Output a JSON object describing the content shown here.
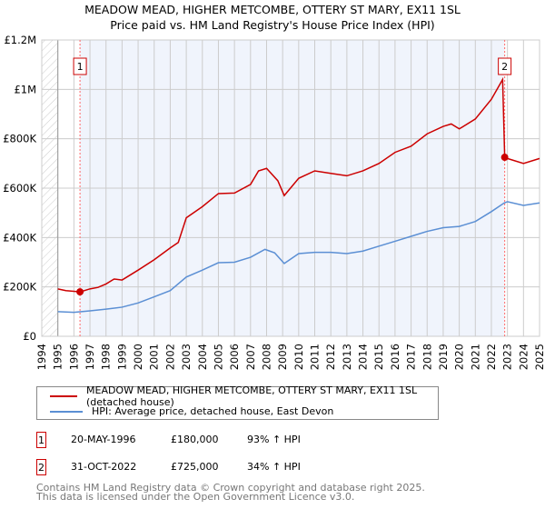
{
  "chart_data": {
    "type": "line",
    "title": "MEADOW MEAD, HIGHER METCOMBE, OTTERY ST MARY, EX11 1SL",
    "subtitle": "Price paid vs. HM Land Registry's House Price Index (HPI)",
    "xlim": [
      1994,
      2025
    ],
    "ylim": [
      0,
      1200000
    ],
    "x_ticks": [
      "1994",
      "1995",
      "1996",
      "1997",
      "1998",
      "1999",
      "2000",
      "2001",
      "2002",
      "2003",
      "2004",
      "2005",
      "2006",
      "2007",
      "2008",
      "2009",
      "2010",
      "2011",
      "2012",
      "2013",
      "2014",
      "2015",
      "2016",
      "2017",
      "2018",
      "2019",
      "2020",
      "2021",
      "2022",
      "2023",
      "2024",
      "2025"
    ],
    "y_ticks": [
      {
        "v": 0,
        "label": "£0"
      },
      {
        "v": 200000,
        "label": "£200K"
      },
      {
        "v": 400000,
        "label": "£400K"
      },
      {
        "v": 600000,
        "label": "£600K"
      },
      {
        "v": 800000,
        "label": "£800K"
      },
      {
        "v": 1000000,
        "label": "£1M"
      },
      {
        "v": 1200000,
        "label": "£1.2M"
      }
    ],
    "grid": true,
    "series": [
      {
        "name": "MEADOW MEAD, HIGHER METCOMBE, OTTERY ST MARY, EX11 1SL (detached house)",
        "color": "#cc0000",
        "x": [
          1995,
          1995.5,
          1996,
          1996.4,
          1997,
          1997.5,
          1998,
          1998.5,
          1999,
          2000,
          2001,
          2002,
          2002.5,
          2003,
          2004,
          2005,
          2006,
          2007,
          2007.5,
          2008,
          2008.7,
          2009.1,
          2010,
          2011,
          2012,
          2013,
          2014,
          2015,
          2016,
          2017,
          2018,
          2019,
          2019.5,
          2020,
          2021,
          2022,
          2022.7,
          2022.83,
          2023,
          2024,
          2025
        ],
        "y": [
          192000,
          185000,
          182000,
          180000,
          192000,
          198000,
          212000,
          232000,
          228000,
          268000,
          310000,
          358000,
          380000,
          480000,
          525000,
          578000,
          580000,
          615000,
          670000,
          680000,
          630000,
          570000,
          640000,
          670000,
          660000,
          650000,
          670000,
          700000,
          745000,
          770000,
          820000,
          850000,
          860000,
          840000,
          880000,
          960000,
          1040000,
          725000,
          720000,
          700000,
          720000
        ]
      },
      {
        "name": "HPI: Average price, detached house, East Devon",
        "color": "#5b8fd4",
        "x": [
          1995,
          1996,
          1997,
          1998,
          1999,
          2000,
          2001,
          2002,
          2003,
          2004,
          2005,
          2006,
          2007,
          2007.9,
          2008.5,
          2009.1,
          2010,
          2011,
          2012,
          2013,
          2014,
          2015,
          2016,
          2017,
          2018,
          2019,
          2020,
          2021,
          2022,
          2022.8,
          2023,
          2024,
          2025
        ],
        "y": [
          100000,
          97000,
          103000,
          110000,
          118000,
          135000,
          160000,
          185000,
          240000,
          268000,
          298000,
          300000,
          320000,
          352000,
          338000,
          295000,
          335000,
          340000,
          340000,
          335000,
          345000,
          365000,
          385000,
          405000,
          425000,
          440000,
          445000,
          465000,
          505000,
          540000,
          545000,
          530000,
          540000
        ]
      }
    ],
    "annotations": [
      {
        "label": "1",
        "x": 1996.38,
        "y": 180000
      },
      {
        "label": "2",
        "x": 2022.83,
        "y": 725000
      }
    ],
    "legend": "below"
  },
  "transactions": [
    {
      "n": "1",
      "date": "20-MAY-1996",
      "price": "£180,000",
      "hpi": "93% ↑ HPI"
    },
    {
      "n": "2",
      "date": "31-OCT-2022",
      "price": "£725,000",
      "hpi": "34% ↑ HPI"
    }
  ],
  "footer": [
    "Contains HM Land Registry data © Crown copyright and database right 2025.",
    "This data is licensed under the Open Government Licence v3.0."
  ]
}
